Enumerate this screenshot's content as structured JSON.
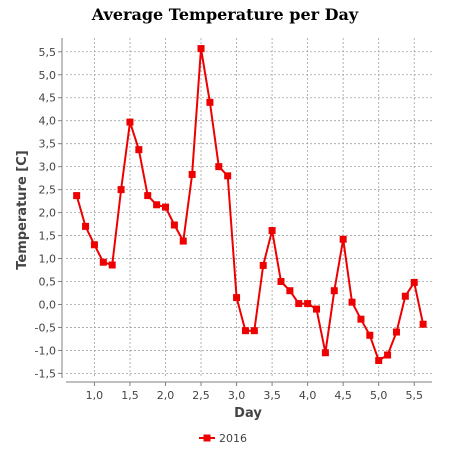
{
  "chart_data": {
    "type": "line",
    "title": "Average Temperature per Day",
    "xlabel": "Day",
    "ylabel": "Temperature [C]",
    "xlim": [
      0.6,
      5.75
    ],
    "ylim": [
      -1.6,
      5.8
    ],
    "xticks": [
      1.0,
      1.5,
      2.0,
      2.5,
      3.0,
      3.5,
      4.0,
      4.5,
      5.0,
      5.5
    ],
    "xtick_labels": [
      "1,0",
      "1,5",
      "2,0",
      "2,5",
      "3,0",
      "3,5",
      "4,0",
      "4,5",
      "5,0",
      "5,5"
    ],
    "yticks": [
      -1.5,
      -1.0,
      -0.5,
      0.0,
      0.5,
      1.0,
      1.5,
      2.0,
      2.5,
      3.0,
      3.5,
      4.0,
      4.5,
      5.0,
      5.5
    ],
    "ytick_labels": [
      "-1,5",
      "-1,0",
      "-0,5",
      "0,0",
      "0,5",
      "1,0",
      "1,5",
      "2,0",
      "2,5",
      "3,0",
      "3,5",
      "4,0",
      "4,5",
      "5,0",
      "5,5"
    ],
    "grid": true,
    "legend_position": "bottom-center",
    "series": [
      {
        "name": "2016",
        "color": "#ee0000",
        "marker": "square",
        "x": [
          0.75,
          0.875,
          1.0,
          1.125,
          1.25,
          1.375,
          1.5,
          1.625,
          1.75,
          1.875,
          2.0,
          2.125,
          2.25,
          2.375,
          2.5,
          2.625,
          2.75,
          2.875,
          3.0,
          3.125,
          3.25,
          3.375,
          3.5,
          3.625,
          3.75,
          3.875,
          4.0,
          4.125,
          4.25,
          4.375,
          4.5,
          4.625,
          4.75,
          4.875,
          5.0,
          5.125,
          5.25,
          5.375,
          5.5,
          5.625
        ],
        "y": [
          2.37,
          1.7,
          1.3,
          0.92,
          0.86,
          2.5,
          3.97,
          3.37,
          2.37,
          2.17,
          2.12,
          1.73,
          1.38,
          2.83,
          5.57,
          4.4,
          3.0,
          2.8,
          0.15,
          -0.57,
          -0.57,
          0.85,
          1.61,
          0.5,
          0.3,
          0.02,
          0.02,
          -0.1,
          -1.05,
          0.3,
          1.42,
          0.05,
          -0.32,
          -0.67,
          -1.22,
          -1.1,
          -0.6,
          0.18,
          0.48,
          -0.43
        ]
      }
    ]
  }
}
